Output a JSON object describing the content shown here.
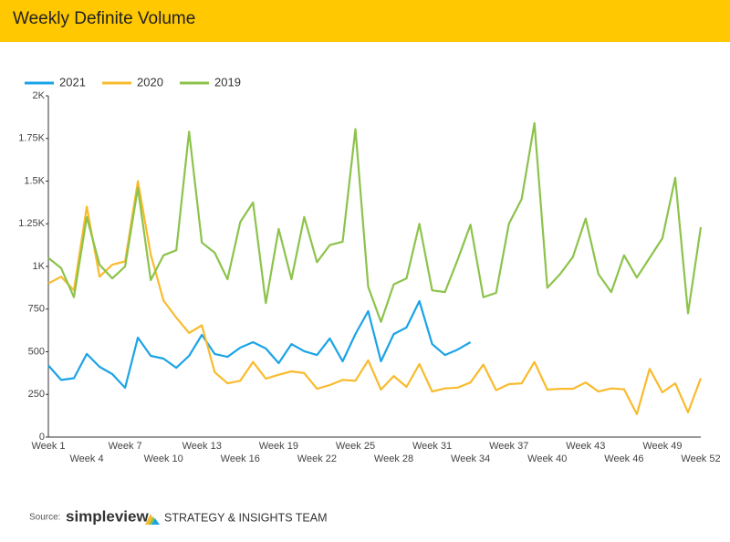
{
  "chart_data": {
    "type": "line",
    "title": "Weekly Definite Volume",
    "categories": [
      "Week 1",
      null,
      null,
      "Week 4",
      null,
      null,
      "Week 7",
      null,
      null,
      "Week 10",
      null,
      null,
      "Week 13",
      null,
      null,
      "Week 16",
      null,
      null,
      "Week 19",
      null,
      null,
      "Week 22",
      null,
      null,
      "Week 25",
      null,
      null,
      "Week 28",
      null,
      null,
      "Week 31",
      null,
      null,
      "Week 34",
      null,
      null,
      "Week 37",
      null,
      null,
      "Week 40",
      null,
      null,
      "Week 43",
      null,
      null,
      "Week 46",
      null,
      null,
      "Week 49",
      null,
      null,
      "Week 52"
    ],
    "series": [
      {
        "name": "2021",
        "color": "#1ba3e6",
        "values": [
          420,
          335,
          345,
          487,
          412,
          369,
          289,
          583,
          476,
          460,
          406,
          476,
          599,
          487,
          470,
          524,
          556,
          519,
          433,
          545,
          503,
          481,
          578,
          444,
          604,
          738,
          444,
          604,
          642,
          797,
          545,
          481,
          513,
          556,
          null,
          null,
          null,
          null,
          null,
          null,
          null,
          null,
          null,
          null,
          null,
          null,
          null,
          null,
          null,
          null,
          null,
          null
        ]
      },
      {
        "name": "2020",
        "color": "#f9bb2d",
        "values": [
          900,
          940,
          860,
          1350,
          940,
          1010,
          1030,
          1500,
          1070,
          800,
          700,
          610,
          655,
          380,
          315,
          330,
          440,
          342,
          365,
          385,
          375,
          283,
          305,
          335,
          330,
          450,
          278,
          358,
          294,
          428,
          267,
          285,
          290,
          320,
          425,
          275,
          310,
          315,
          440,
          278,
          283,
          283,
          320,
          267,
          285,
          280,
          135,
          400,
          262,
          315,
          145,
          345
        ]
      },
      {
        "name": "2019",
        "color": "#8cc34b",
        "values": [
          1050,
          990,
          820,
          1290,
          1010,
          930,
          1000,
          1460,
          920,
          1065,
          1095,
          1790,
          1140,
          1080,
          925,
          1260,
          1375,
          785,
          1220,
          925,
          1290,
          1025,
          1125,
          1145,
          1805,
          880,
          675,
          895,
          930,
          1250,
          860,
          850,
          1040,
          1245,
          820,
          845,
          1250,
          1395,
          1840,
          875,
          955,
          1055,
          1280,
          955,
          850,
          1065,
          935,
          1050,
          1165,
          1520,
          725,
          1230
        ]
      }
    ],
    "ylim": [
      0,
      2000
    ],
    "yticks": [
      0,
      250,
      500,
      750,
      {
        "value": 1000,
        "label": "1K"
      },
      {
        "value": 1250,
        "label": "1.25K"
      },
      {
        "value": 1500,
        "label": "1.5K"
      },
      {
        "value": 1750,
        "label": "1.75K"
      },
      {
        "value": 2000,
        "label": "2K"
      }
    ],
    "grid": false,
    "legend": "top-left"
  },
  "footer": {
    "source": "Source:",
    "brand": "simpleview",
    "team": "STRATEGY & INSIGHTS TEAM"
  }
}
